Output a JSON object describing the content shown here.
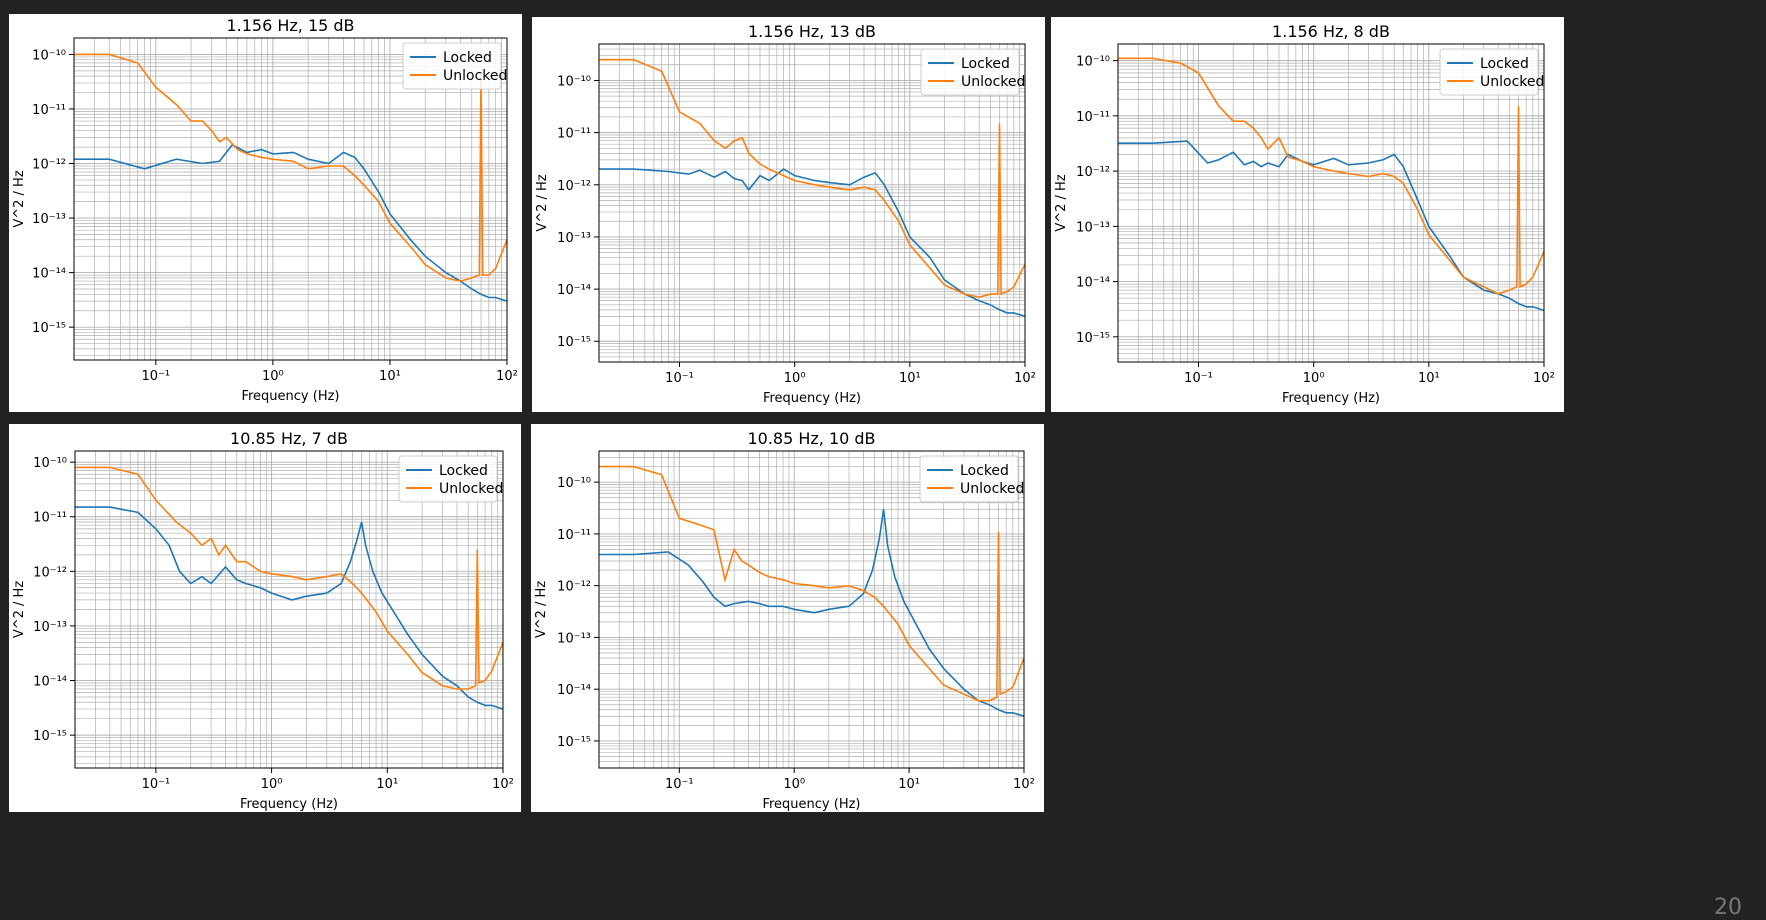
{
  "colors": {
    "locked": "#1f77b4",
    "unlocked": "#ff7f0e",
    "grid": "#b0b0b0",
    "background": "#222222"
  },
  "page_number": "20",
  "chart_data": [
    {
      "type": "line",
      "title": "1.156 Hz, 15 dB",
      "xlabel": "Frequency (Hz)",
      "ylabel": "V^2 / Hz",
      "xscale": "log",
      "yscale": "log",
      "xlim": [
        0.02,
        100
      ],
      "ylim": [
        2.5e-16,
        2e-10
      ],
      "xticks": [
        {
          "v": 0.1,
          "label": "10⁻¹"
        },
        {
          "v": 1,
          "label": "10⁰"
        },
        {
          "v": 10,
          "label": "10¹"
        },
        {
          "v": 100,
          "label": "10²"
        }
      ],
      "yticks": [
        {
          "v": 1e-15,
          "label": "10⁻¹⁵"
        },
        {
          "v": 1e-14,
          "label": "10⁻¹⁴"
        },
        {
          "v": 1e-13,
          "label": "10⁻¹³"
        },
        {
          "v": 1e-12,
          "label": "10⁻¹²"
        },
        {
          "v": 1e-11,
          "label": "10⁻¹¹"
        },
        {
          "v": 1e-10,
          "label": "10⁻¹⁰"
        }
      ],
      "grid": true,
      "legend": "top-right",
      "series": [
        {
          "name": "Locked",
          "color": "#1f77b4",
          "x": [
            0.02,
            0.04,
            0.08,
            0.15,
            0.25,
            0.35,
            0.45,
            0.6,
            0.8,
            1.0,
            1.5,
            2.0,
            3.0,
            4.0,
            5.0,
            6.0,
            8.0,
            10,
            15,
            20,
            30,
            40,
            50,
            60,
            70,
            80,
            100
          ],
          "y": [
            1.2e-12,
            1.2e-12,
            8e-13,
            1.2e-12,
            1e-12,
            1.1e-12,
            2.2e-12,
            1.6e-12,
            1.8e-12,
            1.5e-12,
            1.6e-12,
            1.2e-12,
            1e-12,
            1.6e-12,
            1.3e-12,
            8e-13,
            3e-13,
            1.2e-13,
            4e-14,
            2e-14,
            1e-14,
            7e-15,
            5e-15,
            4e-15,
            3.5e-15,
            3.5e-15,
            3e-15
          ]
        },
        {
          "name": "Unlocked",
          "color": "#ff7f0e",
          "x": [
            0.02,
            0.04,
            0.07,
            0.1,
            0.15,
            0.2,
            0.25,
            0.3,
            0.35,
            0.4,
            0.5,
            0.6,
            0.8,
            1.0,
            1.5,
            2.0,
            3.0,
            4.0,
            5.0,
            6.0,
            8.0,
            10,
            15,
            20,
            30,
            40,
            50,
            58,
            60,
            62,
            70,
            80,
            100
          ],
          "y": [
            1e-10,
            1e-10,
            7e-11,
            2.5e-11,
            1.2e-11,
            6e-12,
            6e-12,
            4e-12,
            2.5e-12,
            3e-12,
            1.8e-12,
            1.5e-12,
            1.3e-12,
            1.2e-12,
            1.1e-12,
            8e-13,
            9e-13,
            9e-13,
            6e-13,
            4e-13,
            2e-13,
            8e-14,
            3e-14,
            1.4e-14,
            8e-15,
            7e-15,
            8e-15,
            9e-15,
            4e-11,
            9e-15,
            9e-15,
            1.2e-14,
            4e-14
          ]
        }
      ]
    },
    {
      "type": "line",
      "title": "1.156 Hz, 13 dB",
      "xlabel": "Frequency (Hz)",
      "ylabel": "V^2 / Hz",
      "xscale": "log",
      "yscale": "log",
      "xlim": [
        0.02,
        100
      ],
      "ylim": [
        4e-16,
        5e-10
      ],
      "xticks": [
        {
          "v": 0.1,
          "label": "10⁻¹"
        },
        {
          "v": 1,
          "label": "10⁰"
        },
        {
          "v": 10,
          "label": "10¹"
        },
        {
          "v": 100,
          "label": "10²"
        }
      ],
      "yticks": [
        {
          "v": 1e-15,
          "label": "10⁻¹⁵"
        },
        {
          "v": 1e-14,
          "label": "10⁻¹⁴"
        },
        {
          "v": 1e-13,
          "label": "10⁻¹³"
        },
        {
          "v": 1e-12,
          "label": "10⁻¹²"
        },
        {
          "v": 1e-11,
          "label": "10⁻¹¹"
        },
        {
          "v": 1e-10,
          "label": "10⁻¹⁰"
        }
      ],
      "grid": true,
      "legend": "top-right",
      "series": [
        {
          "name": "Locked",
          "color": "#1f77b4",
          "x": [
            0.02,
            0.04,
            0.08,
            0.12,
            0.15,
            0.2,
            0.25,
            0.3,
            0.35,
            0.4,
            0.5,
            0.6,
            0.8,
            1.0,
            1.5,
            2.0,
            3.0,
            4.0,
            5.0,
            6.0,
            8.0,
            10,
            15,
            20,
            30,
            40,
            50,
            60,
            70,
            80,
            100
          ],
          "y": [
            2e-12,
            2e-12,
            1.8e-12,
            1.6e-12,
            1.9e-12,
            1.4e-12,
            1.8e-12,
            1.3e-12,
            1.2e-12,
            8e-13,
            1.5e-12,
            1.2e-12,
            2e-12,
            1.5e-12,
            1.2e-12,
            1.1e-12,
            1e-12,
            1.4e-12,
            1.7e-12,
            1e-12,
            3e-13,
            1e-13,
            4e-14,
            1.5e-14,
            8e-15,
            6e-15,
            5e-15,
            4e-15,
            3.5e-15,
            3.5e-15,
            3e-15
          ]
        },
        {
          "name": "Unlocked",
          "color": "#ff7f0e",
          "x": [
            0.02,
            0.04,
            0.07,
            0.1,
            0.15,
            0.2,
            0.25,
            0.3,
            0.35,
            0.4,
            0.5,
            0.6,
            0.8,
            1.0,
            1.5,
            2.0,
            3.0,
            4.0,
            5.0,
            6.0,
            8.0,
            10,
            15,
            20,
            30,
            40,
            50,
            58,
            60,
            62,
            70,
            80,
            100
          ],
          "y": [
            2.5e-10,
            2.5e-10,
            1.5e-10,
            2.5e-11,
            1.5e-11,
            7e-12,
            5e-12,
            7e-12,
            8e-12,
            4e-12,
            2.5e-12,
            2e-12,
            1.5e-12,
            1.2e-12,
            1e-12,
            9e-13,
            8e-13,
            9e-13,
            8e-13,
            5e-13,
            2e-13,
            7e-14,
            2.5e-14,
            1.2e-14,
            8e-15,
            7e-15,
            8e-15,
            8e-15,
            1.5e-11,
            8e-15,
            9e-15,
            1.1e-14,
            3e-14
          ]
        }
      ]
    },
    {
      "type": "line",
      "title": "1.156 Hz, 8 dB",
      "xlabel": "Frequency (Hz)",
      "ylabel": "V^2 / Hz",
      "xscale": "log",
      "yscale": "log",
      "xlim": [
        0.02,
        100
      ],
      "ylim": [
        3.5e-16,
        2e-10
      ],
      "xticks": [
        {
          "v": 0.1,
          "label": "10⁻¹"
        },
        {
          "v": 1,
          "label": "10⁰"
        },
        {
          "v": 10,
          "label": "10¹"
        },
        {
          "v": 100,
          "label": "10²"
        }
      ],
      "yticks": [
        {
          "v": 1e-15,
          "label": "10⁻¹⁵"
        },
        {
          "v": 1e-14,
          "label": "10⁻¹⁴"
        },
        {
          "v": 1e-13,
          "label": "10⁻¹³"
        },
        {
          "v": 1e-12,
          "label": "10⁻¹²"
        },
        {
          "v": 1e-11,
          "label": "10⁻¹¹"
        },
        {
          "v": 1e-10,
          "label": "10⁻¹⁰"
        }
      ],
      "grid": true,
      "legend": "top-right",
      "series": [
        {
          "name": "Locked",
          "color": "#1f77b4",
          "x": [
            0.02,
            0.04,
            0.08,
            0.12,
            0.15,
            0.2,
            0.25,
            0.3,
            0.35,
            0.4,
            0.5,
            0.6,
            0.8,
            1.0,
            1.5,
            2.0,
            3.0,
            4.0,
            5.0,
            6.0,
            8.0,
            10,
            15,
            20,
            30,
            40,
            50,
            60,
            70,
            80,
            100
          ],
          "y": [
            3.2e-12,
            3.2e-12,
            3.5e-12,
            1.4e-12,
            1.6e-12,
            2.2e-12,
            1.3e-12,
            1.5e-12,
            1.2e-12,
            1.4e-12,
            1.2e-12,
            2e-12,
            1.5e-12,
            1.3e-12,
            1.7e-12,
            1.3e-12,
            1.4e-12,
            1.6e-12,
            2e-12,
            1.2e-12,
            3e-13,
            1e-13,
            3e-14,
            1.2e-14,
            7e-15,
            6e-15,
            5e-15,
            4e-15,
            3.5e-15,
            3.5e-15,
            3e-15
          ]
        },
        {
          "name": "Unlocked",
          "color": "#ff7f0e",
          "x": [
            0.02,
            0.04,
            0.07,
            0.1,
            0.15,
            0.2,
            0.25,
            0.3,
            0.35,
            0.4,
            0.5,
            0.6,
            0.8,
            1.0,
            1.5,
            2.0,
            3.0,
            4.0,
            5.0,
            6.0,
            8.0,
            10,
            15,
            20,
            30,
            40,
            50,
            58,
            60,
            62,
            70,
            80,
            100
          ],
          "y": [
            1.1e-10,
            1.1e-10,
            9e-11,
            6e-11,
            1.5e-11,
            8e-12,
            8e-12,
            6e-12,
            4e-12,
            2.5e-12,
            4e-12,
            1.8e-12,
            1.5e-12,
            1.2e-12,
            1e-12,
            9e-13,
            8e-13,
            9e-13,
            8e-13,
            6e-13,
            2e-13,
            7e-14,
            2.5e-14,
            1.2e-14,
            8e-15,
            6e-15,
            7e-15,
            8e-15,
            1.5e-11,
            8e-15,
            9e-15,
            1.2e-14,
            3.5e-14
          ]
        }
      ]
    },
    {
      "type": "line",
      "title": "10.85 Hz, 7 dB",
      "xlabel": "Frequency (Hz)",
      "ylabel": "V^2 / Hz",
      "xscale": "log",
      "yscale": "log",
      "xlim": [
        0.02,
        100
      ],
      "ylim": [
        2.5e-16,
        1.6e-10
      ],
      "xticks": [
        {
          "v": 0.1,
          "label": "10⁻¹"
        },
        {
          "v": 1,
          "label": "10⁰"
        },
        {
          "v": 10,
          "label": "10¹"
        },
        {
          "v": 100,
          "label": "10²"
        }
      ],
      "yticks": [
        {
          "v": 1e-15,
          "label": "10⁻¹⁵"
        },
        {
          "v": 1e-14,
          "label": "10⁻¹⁴"
        },
        {
          "v": 1e-13,
          "label": "10⁻¹³"
        },
        {
          "v": 1e-12,
          "label": "10⁻¹²"
        },
        {
          "v": 1e-11,
          "label": "10⁻¹¹"
        },
        {
          "v": 1e-10,
          "label": "10⁻¹⁰"
        }
      ],
      "grid": true,
      "legend": "top-right",
      "series": [
        {
          "name": "Locked",
          "color": "#1f77b4",
          "x": [
            0.02,
            0.04,
            0.07,
            0.1,
            0.13,
            0.16,
            0.2,
            0.25,
            0.3,
            0.4,
            0.5,
            0.6,
            0.8,
            1.0,
            1.5,
            2.0,
            3.0,
            4.0,
            4.8,
            5.5,
            6.0,
            6.5,
            7.5,
            9.0,
            12,
            15,
            20,
            30,
            40,
            50,
            60,
            70,
            80,
            100
          ],
          "y": [
            1.5e-11,
            1.5e-11,
            1.2e-11,
            6e-12,
            3e-12,
            1e-12,
            6e-13,
            8e-13,
            6e-13,
            1.2e-12,
            7e-13,
            6e-13,
            5e-13,
            4e-13,
            3e-13,
            3.5e-13,
            4e-13,
            6e-13,
            1.5e-12,
            4e-12,
            8e-12,
            3e-12,
            1e-12,
            4e-13,
            1.5e-13,
            7e-14,
            3e-14,
            1.2e-14,
            8e-15,
            5e-15,
            4e-15,
            3.5e-15,
            3.5e-15,
            3e-15
          ]
        },
        {
          "name": "Unlocked",
          "color": "#ff7f0e",
          "x": [
            0.02,
            0.04,
            0.07,
            0.1,
            0.15,
            0.2,
            0.25,
            0.3,
            0.35,
            0.4,
            0.5,
            0.6,
            0.8,
            1.0,
            1.5,
            2.0,
            3.0,
            4.0,
            5.0,
            6.0,
            8.0,
            10,
            15,
            20,
            30,
            40,
            50,
            58,
            60,
            62,
            70,
            80,
            100
          ],
          "y": [
            8e-11,
            8e-11,
            6e-11,
            2e-11,
            8e-12,
            5e-12,
            3e-12,
            4e-12,
            2e-12,
            3e-12,
            1.5e-12,
            1.5e-12,
            1e-12,
            9e-13,
            8e-13,
            7e-13,
            8e-13,
            9e-13,
            6e-13,
            4e-13,
            1.8e-13,
            8e-14,
            3e-14,
            1.4e-14,
            8e-15,
            7e-15,
            7e-15,
            8e-15,
            2.5e-12,
            9e-15,
            1e-14,
            1.5e-14,
            5e-14
          ]
        }
      ]
    },
    {
      "type": "line",
      "title": "10.85 Hz, 10 dB",
      "xlabel": "Frequency (Hz)",
      "ylabel": "V^2 / Hz",
      "xscale": "log",
      "yscale": "log",
      "xlim": [
        0.02,
        100
      ],
      "ylim": [
        3e-16,
        4e-10
      ],
      "xticks": [
        {
          "v": 0.1,
          "label": "10⁻¹"
        },
        {
          "v": 1,
          "label": "10⁰"
        },
        {
          "v": 10,
          "label": "10¹"
        },
        {
          "v": 100,
          "label": "10²"
        }
      ],
      "yticks": [
        {
          "v": 1e-15,
          "label": "10⁻¹⁵"
        },
        {
          "v": 1e-14,
          "label": "10⁻¹⁴"
        },
        {
          "v": 1e-13,
          "label": "10⁻¹³"
        },
        {
          "v": 1e-12,
          "label": "10⁻¹²"
        },
        {
          "v": 1e-11,
          "label": "10⁻¹¹"
        },
        {
          "v": 1e-10,
          "label": "10⁻¹⁰"
        }
      ],
      "grid": true,
      "legend": "top-right",
      "series": [
        {
          "name": "Locked",
          "color": "#1f77b4",
          "x": [
            0.02,
            0.04,
            0.08,
            0.12,
            0.16,
            0.2,
            0.25,
            0.3,
            0.4,
            0.5,
            0.6,
            0.8,
            1.0,
            1.5,
            2.0,
            3.0,
            4.0,
            4.8,
            5.5,
            6.0,
            6.5,
            7.5,
            9.0,
            12,
            15,
            20,
            30,
            40,
            50,
            60,
            70,
            80,
            100
          ],
          "y": [
            4e-12,
            4e-12,
            4.5e-12,
            2.5e-12,
            1.2e-12,
            6e-13,
            4e-13,
            4.5e-13,
            5e-13,
            4.5e-13,
            4e-13,
            4e-13,
            3.5e-13,
            3e-13,
            3.5e-13,
            4e-13,
            7e-13,
            2e-12,
            8e-12,
            3e-11,
            6e-12,
            1.5e-12,
            5e-13,
            1.5e-13,
            6e-14,
            2.5e-14,
            1e-14,
            6e-15,
            5e-15,
            4e-15,
            3.5e-15,
            3.5e-15,
            3e-15
          ]
        },
        {
          "name": "Unlocked",
          "color": "#ff7f0e",
          "x": [
            0.02,
            0.04,
            0.07,
            0.1,
            0.15,
            0.2,
            0.25,
            0.3,
            0.35,
            0.4,
            0.5,
            0.6,
            0.8,
            1.0,
            1.5,
            2.0,
            3.0,
            4.0,
            5.0,
            6.0,
            8.0,
            10,
            15,
            20,
            30,
            40,
            50,
            58,
            60,
            62,
            70,
            80,
            100
          ],
          "y": [
            2e-10,
            2e-10,
            1.4e-10,
            2e-11,
            1.5e-11,
            1.2e-11,
            1.3e-12,
            5e-12,
            3e-12,
            2.5e-12,
            1.8e-12,
            1.5e-12,
            1.3e-12,
            1.1e-12,
            1e-12,
            9e-13,
            1e-12,
            8e-13,
            6e-13,
            4e-13,
            1.8e-13,
            7e-14,
            2.5e-14,
            1.2e-14,
            8e-15,
            6e-15,
            6e-15,
            7e-15,
            1.1e-11,
            8e-15,
            9e-15,
            1.1e-14,
            4e-14
          ]
        }
      ]
    }
  ]
}
